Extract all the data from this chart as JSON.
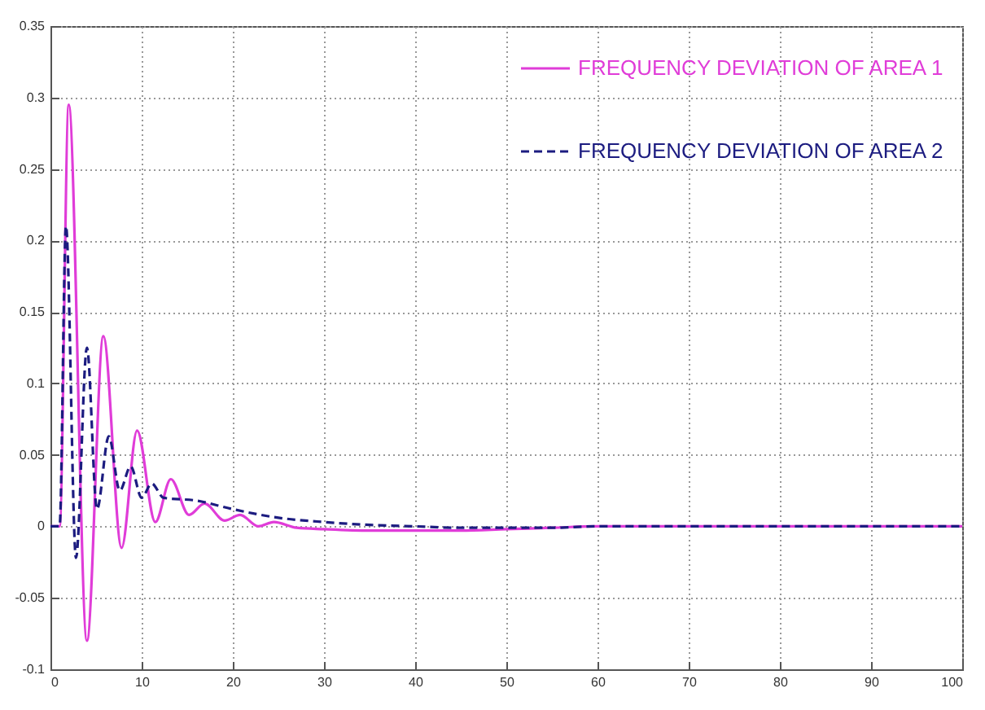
{
  "chart_data": {
    "type": "line",
    "xlim": [
      0,
      100
    ],
    "xticks": [
      0,
      10,
      20,
      30,
      40,
      50,
      60,
      70,
      80,
      90,
      100
    ],
    "ylim": [
      -0.1,
      0.35
    ],
    "yticks": [
      -0.1,
      -0.05,
      0,
      0.05,
      0.1,
      0.15,
      0.2,
      0.25,
      0.3,
      0.35
    ],
    "grid": true,
    "legend": "top right",
    "series": [
      {
        "name": "FREQUENCY DEVIATION OF AREA 1",
        "color": "#e03cd8",
        "line_style": "solid",
        "x": [
          0,
          1,
          2,
          4,
          5.8,
          7.8,
          9.5,
          11.5,
          13.2,
          15.2,
          16.9,
          19.1,
          20.8,
          22.8,
          24.5,
          27,
          30,
          35,
          40,
          45,
          50,
          55,
          60,
          70,
          80,
          90,
          100
        ],
        "values": [
          0,
          0,
          0.295,
          -0.08,
          0.133,
          -0.015,
          0.067,
          0.003,
          0.033,
          0.008,
          0.016,
          0.004,
          0.008,
          0,
          0.003,
          -0.001,
          -0.002,
          -0.003,
          -0.003,
          -0.003,
          -0.002,
          -0.001,
          0,
          0,
          0,
          0,
          0
        ]
      },
      {
        "name": "FREQUENCY DEVIATION OF AREA 2",
        "color": "#1c1c80",
        "line_style": "dashed",
        "x": [
          0,
          1,
          1.7,
          2.8,
          4,
          5.1,
          6.4,
          7.6,
          8.8,
          10,
          11.1,
          12.4,
          16,
          20,
          25,
          30,
          35,
          40,
          45,
          50,
          55,
          60,
          70,
          80,
          90,
          100
        ],
        "values": [
          0,
          0,
          0.21,
          -0.022,
          0.125,
          0.012,
          0.063,
          0.025,
          0.042,
          0.02,
          0.03,
          0.02,
          0.018,
          0.012,
          0.006,
          0.003,
          0.001,
          0,
          -0.001,
          -0.001,
          -0.001,
          0,
          0,
          0,
          0,
          0
        ]
      }
    ]
  }
}
